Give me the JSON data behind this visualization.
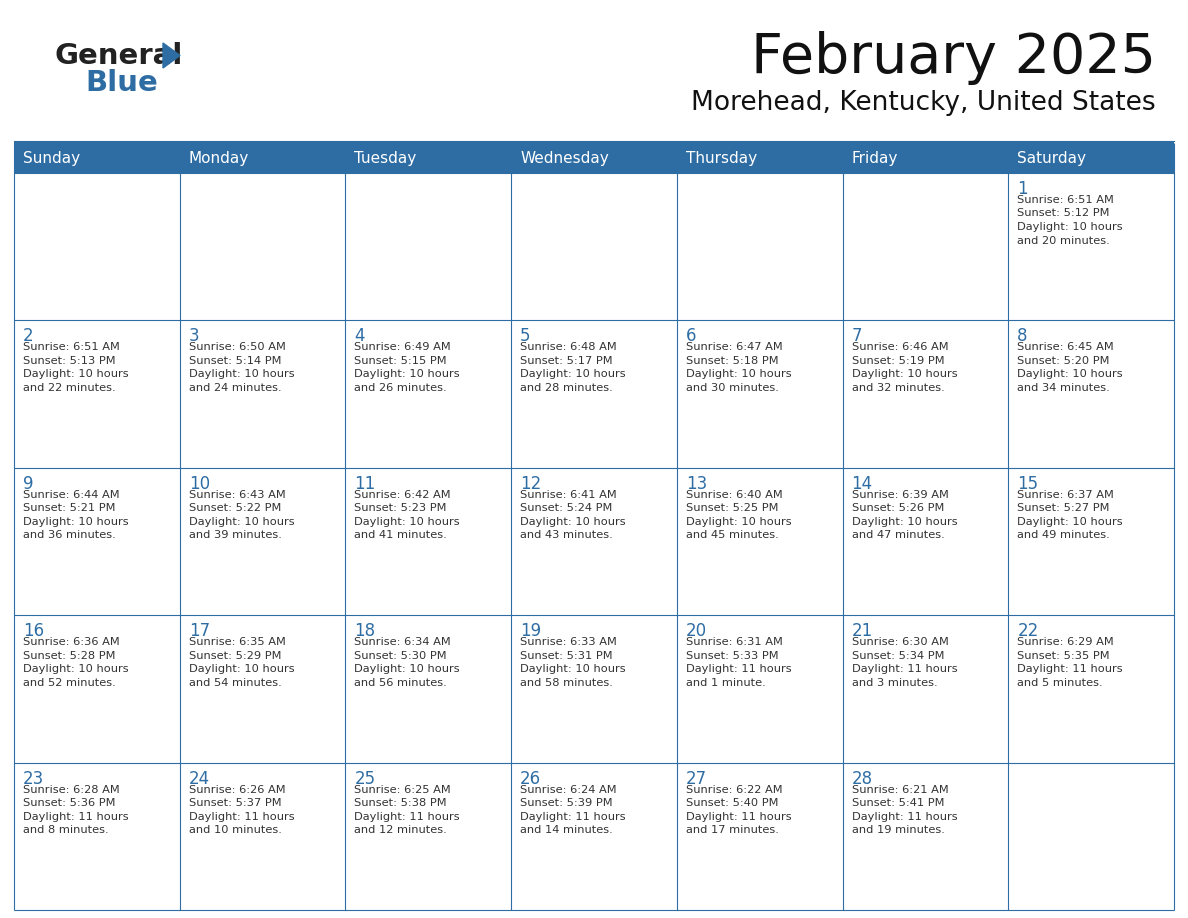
{
  "title": "February 2025",
  "subtitle": "Morehead, Kentucky, United States",
  "days_of_week": [
    "Sunday",
    "Monday",
    "Tuesday",
    "Wednesday",
    "Thursday",
    "Friday",
    "Saturday"
  ],
  "header_bg": "#2E6DA4",
  "header_text": "#FFFFFF",
  "cell_bg": "#FFFFFF",
  "border_color": "#2E6DA4",
  "day_num_color": "#2E6DA4",
  "text_color": "#333333",
  "calendar_data": [
    [
      null,
      null,
      null,
      null,
      null,
      null,
      {
        "day": 1,
        "sunrise": "6:51 AM",
        "sunset": "5:12 PM",
        "daylight": "10 hours\nand 20 minutes."
      }
    ],
    [
      {
        "day": 2,
        "sunrise": "6:51 AM",
        "sunset": "5:13 PM",
        "daylight": "10 hours\nand 22 minutes."
      },
      {
        "day": 3,
        "sunrise": "6:50 AM",
        "sunset": "5:14 PM",
        "daylight": "10 hours\nand 24 minutes."
      },
      {
        "day": 4,
        "sunrise": "6:49 AM",
        "sunset": "5:15 PM",
        "daylight": "10 hours\nand 26 minutes."
      },
      {
        "day": 5,
        "sunrise": "6:48 AM",
        "sunset": "5:17 PM",
        "daylight": "10 hours\nand 28 minutes."
      },
      {
        "day": 6,
        "sunrise": "6:47 AM",
        "sunset": "5:18 PM",
        "daylight": "10 hours\nand 30 minutes."
      },
      {
        "day": 7,
        "sunrise": "6:46 AM",
        "sunset": "5:19 PM",
        "daylight": "10 hours\nand 32 minutes."
      },
      {
        "day": 8,
        "sunrise": "6:45 AM",
        "sunset": "5:20 PM",
        "daylight": "10 hours\nand 34 minutes."
      }
    ],
    [
      {
        "day": 9,
        "sunrise": "6:44 AM",
        "sunset": "5:21 PM",
        "daylight": "10 hours\nand 36 minutes."
      },
      {
        "day": 10,
        "sunrise": "6:43 AM",
        "sunset": "5:22 PM",
        "daylight": "10 hours\nand 39 minutes."
      },
      {
        "day": 11,
        "sunrise": "6:42 AM",
        "sunset": "5:23 PM",
        "daylight": "10 hours\nand 41 minutes."
      },
      {
        "day": 12,
        "sunrise": "6:41 AM",
        "sunset": "5:24 PM",
        "daylight": "10 hours\nand 43 minutes."
      },
      {
        "day": 13,
        "sunrise": "6:40 AM",
        "sunset": "5:25 PM",
        "daylight": "10 hours\nand 45 minutes."
      },
      {
        "day": 14,
        "sunrise": "6:39 AM",
        "sunset": "5:26 PM",
        "daylight": "10 hours\nand 47 minutes."
      },
      {
        "day": 15,
        "sunrise": "6:37 AM",
        "sunset": "5:27 PM",
        "daylight": "10 hours\nand 49 minutes."
      }
    ],
    [
      {
        "day": 16,
        "sunrise": "6:36 AM",
        "sunset": "5:28 PM",
        "daylight": "10 hours\nand 52 minutes."
      },
      {
        "day": 17,
        "sunrise": "6:35 AM",
        "sunset": "5:29 PM",
        "daylight": "10 hours\nand 54 minutes."
      },
      {
        "day": 18,
        "sunrise": "6:34 AM",
        "sunset": "5:30 PM",
        "daylight": "10 hours\nand 56 minutes."
      },
      {
        "day": 19,
        "sunrise": "6:33 AM",
        "sunset": "5:31 PM",
        "daylight": "10 hours\nand 58 minutes."
      },
      {
        "day": 20,
        "sunrise": "6:31 AM",
        "sunset": "5:33 PM",
        "daylight": "11 hours\nand 1 minute."
      },
      {
        "day": 21,
        "sunrise": "6:30 AM",
        "sunset": "5:34 PM",
        "daylight": "11 hours\nand 3 minutes."
      },
      {
        "day": 22,
        "sunrise": "6:29 AM",
        "sunset": "5:35 PM",
        "daylight": "11 hours\nand 5 minutes."
      }
    ],
    [
      {
        "day": 23,
        "sunrise": "6:28 AM",
        "sunset": "5:36 PM",
        "daylight": "11 hours\nand 8 minutes."
      },
      {
        "day": 24,
        "sunrise": "6:26 AM",
        "sunset": "5:37 PM",
        "daylight": "11 hours\nand 10 minutes."
      },
      {
        "day": 25,
        "sunrise": "6:25 AM",
        "sunset": "5:38 PM",
        "daylight": "11 hours\nand 12 minutes."
      },
      {
        "day": 26,
        "sunrise": "6:24 AM",
        "sunset": "5:39 PM",
        "daylight": "11 hours\nand 14 minutes."
      },
      {
        "day": 27,
        "sunrise": "6:22 AM",
        "sunset": "5:40 PM",
        "daylight": "11 hours\nand 17 minutes."
      },
      {
        "day": 28,
        "sunrise": "6:21 AM",
        "sunset": "5:41 PM",
        "daylight": "11 hours\nand 19 minutes."
      },
      null
    ]
  ],
  "figsize": [
    11.88,
    9.18
  ],
  "dpi": 100
}
